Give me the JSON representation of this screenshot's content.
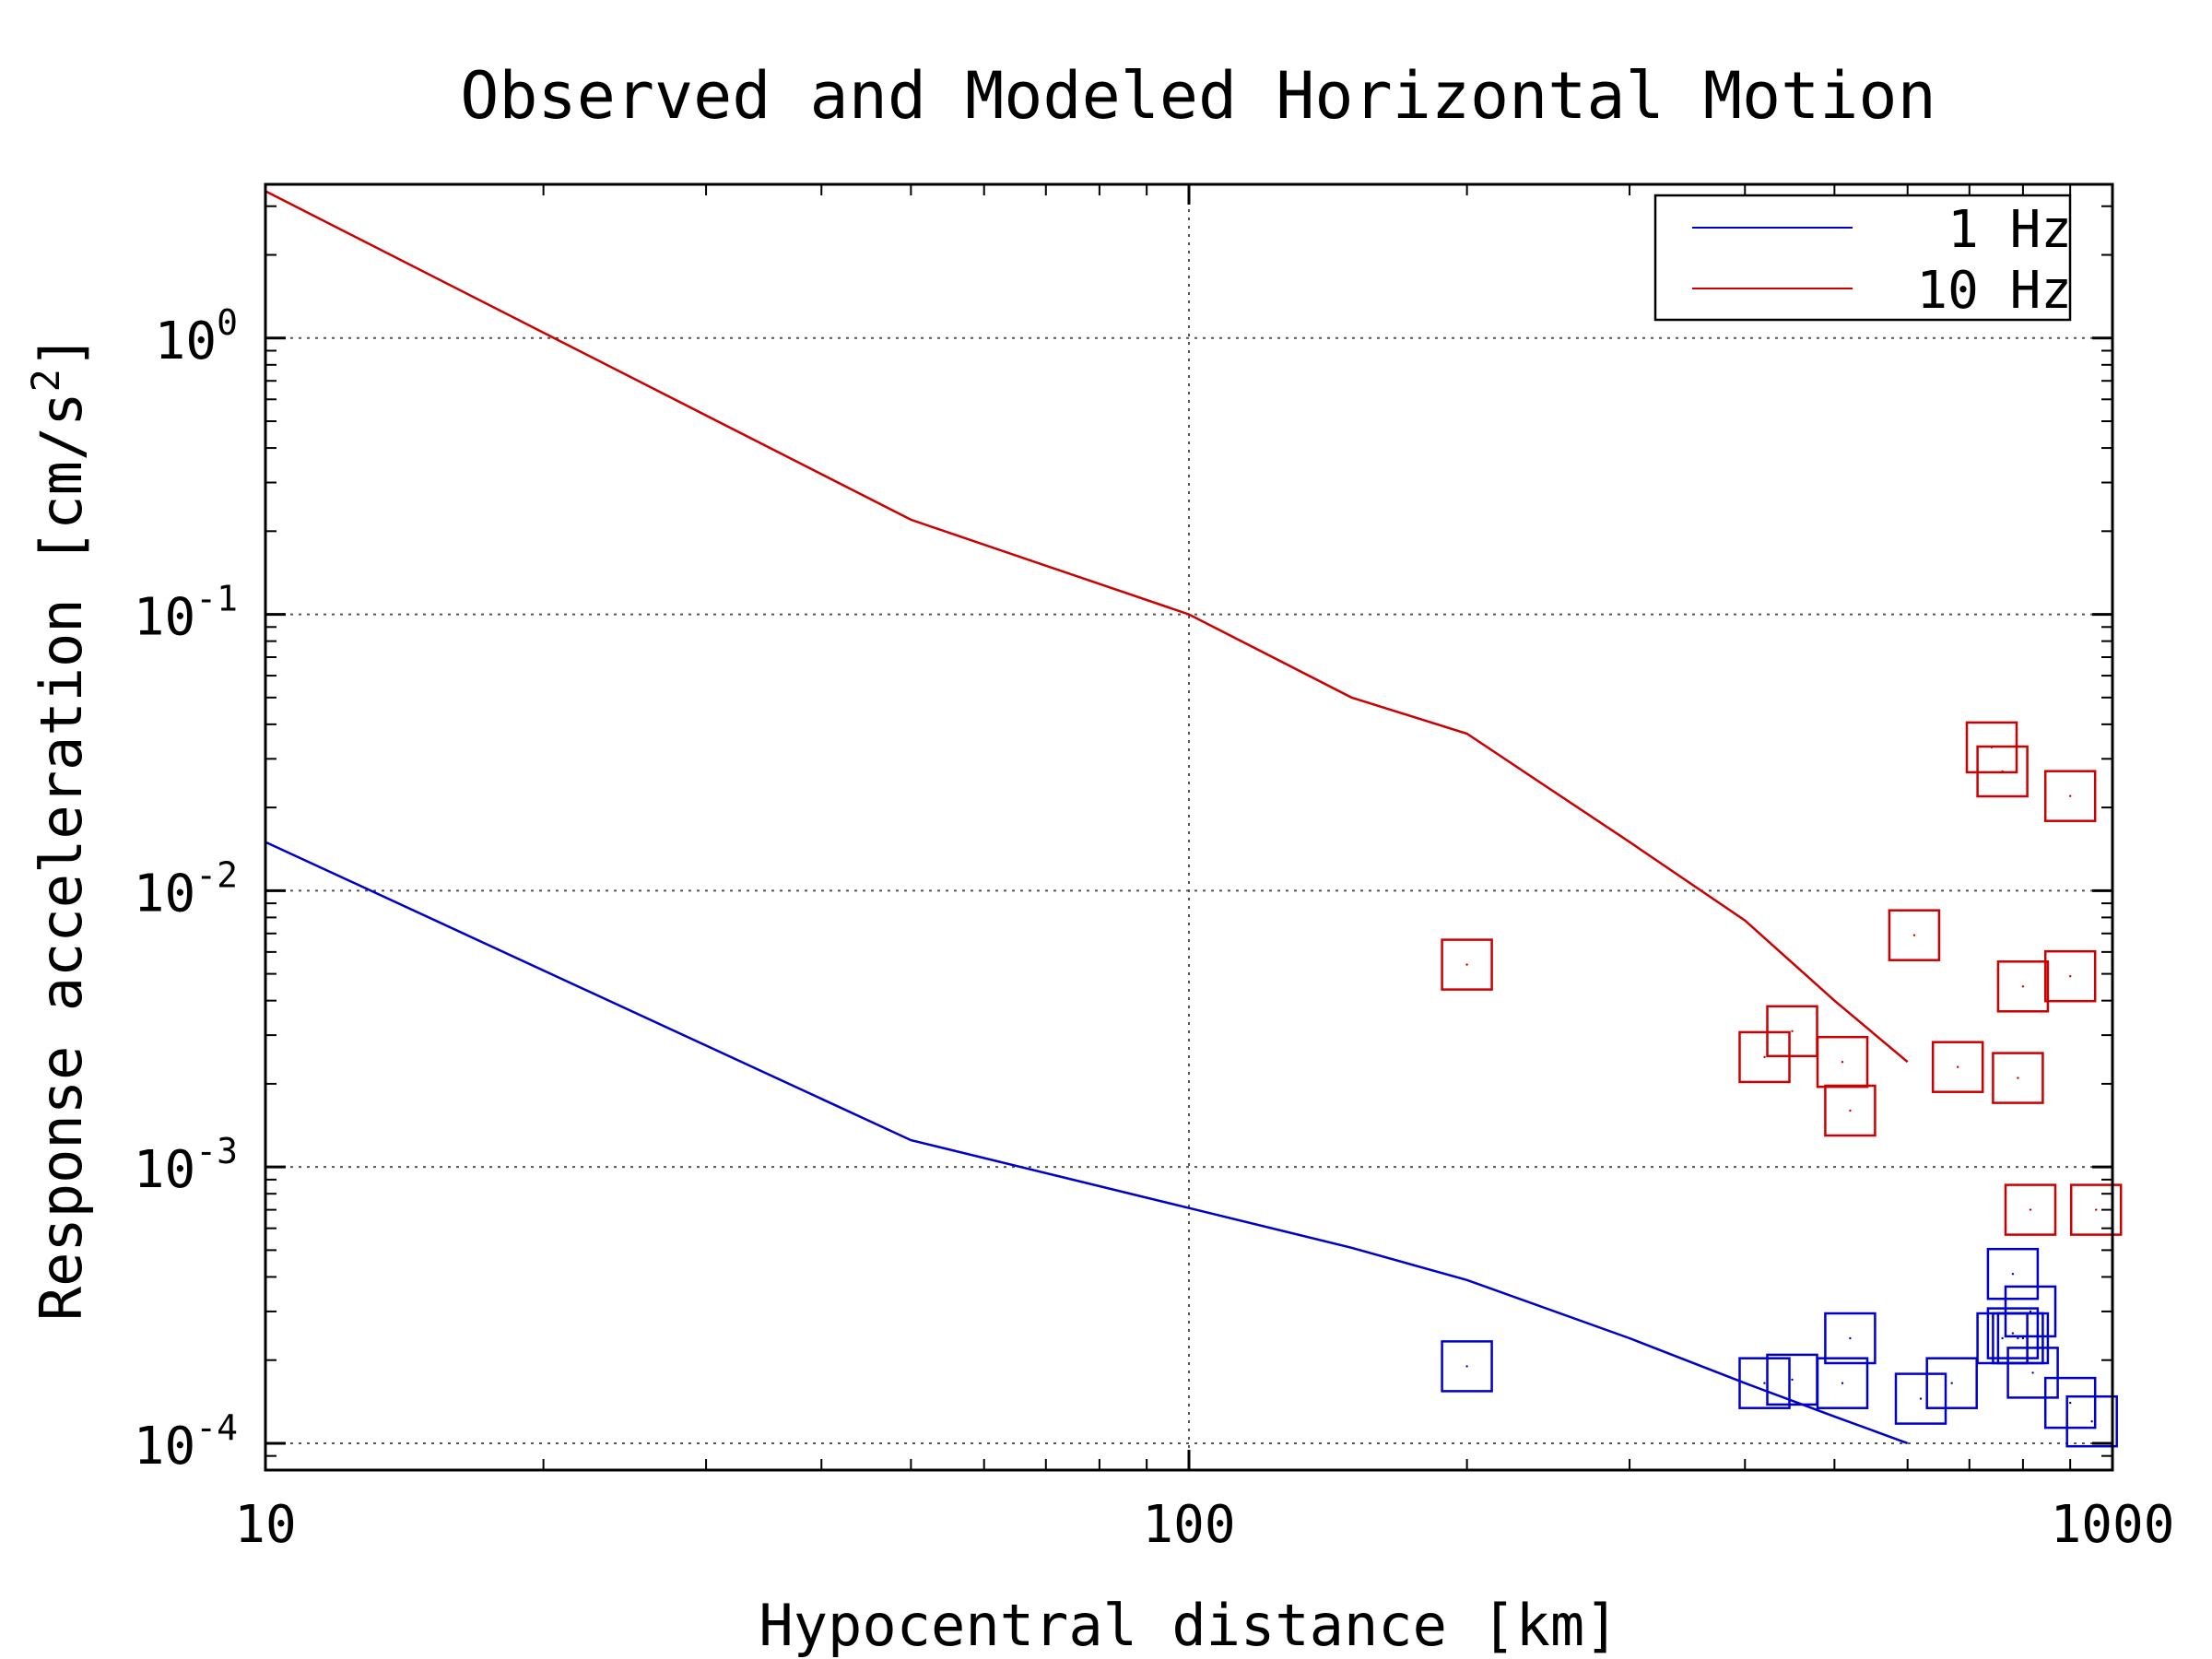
{
  "chart_data": {
    "type": "scatter",
    "title": "Observed and Modeled Horizontal Motion",
    "xlabel": "Hypocentral distance [km]",
    "ylabel": "Response acceleration [cm/s",
    "ylabel_sup": "2",
    "ylabel_end": "]",
    "x_scale": "log",
    "y_scale": "log",
    "xlim": [
      10,
      1000
    ],
    "ylim": [
      8e-05,
      3.6
    ],
    "x_ticks": [
      {
        "value": 10,
        "label": "10"
      },
      {
        "value": 100,
        "label": "100"
      },
      {
        "value": 1000,
        "label": "1000"
      }
    ],
    "y_ticks": [
      {
        "value": 1,
        "base": "10",
        "exp": "0"
      },
      {
        "value": 0.1,
        "base": "10",
        "exp": "-1"
      },
      {
        "value": 0.01,
        "base": "10",
        "exp": "-2"
      },
      {
        "value": 0.001,
        "base": "10",
        "exp": "-3"
      },
      {
        "value": 0.0001,
        "base": "10",
        "exp": "-4"
      }
    ],
    "grid": true,
    "legend_position": "top-right",
    "series": [
      {
        "name": "1 Hz",
        "color": "#0000cc",
        "line": {
          "x": [
            10,
            50,
            100,
            150,
            200,
            300,
            400,
            500,
            600
          ],
          "y": [
            0.015,
            0.00125,
            0.00071,
            0.00051,
            0.00039,
            0.00024,
            0.000165,
            0.000125,
            0.0001
          ]
        },
        "points": {
          "x": [
            200,
            420,
            450,
            520,
            510,
            620,
            670,
            760,
            780,
            790,
            800,
            815,
            820,
            900,
            950,
            780
          ],
          "y": [
            0.00019,
            0.000165,
            0.00017,
            0.00024,
            0.000165,
            0.000145,
            0.000165,
            0.00024,
            0.00041,
            0.00024,
            0.00024,
            0.0003,
            0.00018,
            0.00014,
            0.00012,
            0.00025
          ]
        }
      },
      {
        "name": "10 Hz",
        "color": "#cc0000",
        "line": {
          "x": [
            10,
            50,
            100,
            150,
            200,
            300,
            400,
            500,
            600
          ],
          "y": [
            3.4,
            0.22,
            0.1,
            0.05,
            0.037,
            0.015,
            0.0078,
            0.004,
            0.0024
          ]
        },
        "points": {
          "x": [
            200,
            420,
            450,
            510,
            520,
            610,
            680,
            740,
            760,
            790,
            800,
            815,
            900,
            900,
            960
          ],
          "y": [
            0.0054,
            0.0025,
            0.0031,
            0.0024,
            0.0016,
            0.0069,
            0.0023,
            0.033,
            0.027,
            0.0021,
            0.0045,
            0.0007,
            0.022,
            0.0049,
            0.0007
          ]
        }
      }
    ]
  },
  "legend": {
    "items": [
      {
        "label": "1 Hz",
        "color": "#0000cc"
      },
      {
        "label": "10 Hz",
        "color": "#cc0000"
      }
    ]
  }
}
